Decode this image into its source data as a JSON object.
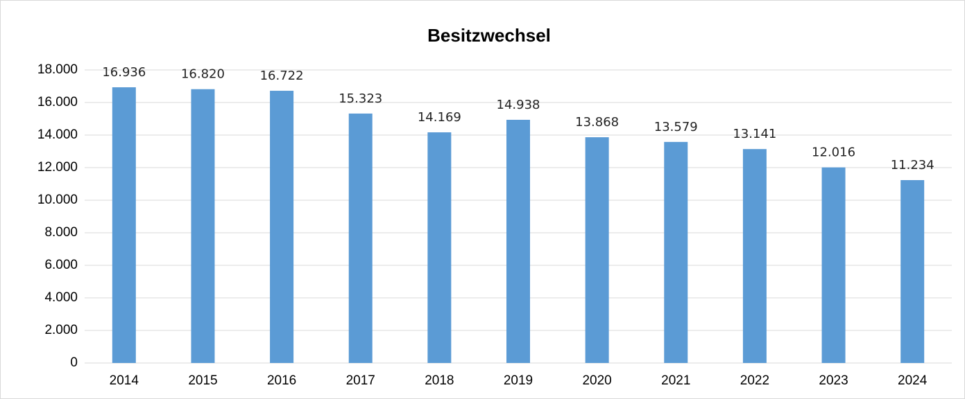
{
  "chart_data": {
    "type": "bar",
    "title": "Besitzwechsel",
    "categories": [
      "2014",
      "2015",
      "2016",
      "2017",
      "2018",
      "2019",
      "2020",
      "2021",
      "2022",
      "2023",
      "2024"
    ],
    "values": [
      16936,
      16820,
      16722,
      15323,
      14169,
      14938,
      13868,
      13579,
      13141,
      12016,
      11234
    ],
    "value_labels": [
      "16.936",
      "16.820",
      "16.722",
      "15.323",
      "14.169",
      "14.938",
      "13.868",
      "13.579",
      "13.141",
      "12.016",
      "11.234"
    ],
    "color": "#5b9bd5",
    "ylim": [
      0,
      18000
    ],
    "yticks": [
      0,
      {
        "value": 2000,
        "label": "2.000"
      },
      {
        "value": 4000,
        "label": "4.000"
      },
      {
        "value": 6000,
        "label": "6.000"
      },
      {
        "value": 8000,
        "label": "8.000"
      },
      {
        "value": 10000,
        "label": "10.000"
      },
      {
        "value": 12000,
        "label": "12.000"
      },
      {
        "value": 14000,
        "label": "14.000"
      },
      {
        "value": 16000,
        "label": "16.000"
      },
      {
        "value": 18000,
        "label": "18.000"
      }
    ],
    "grid": true
  }
}
